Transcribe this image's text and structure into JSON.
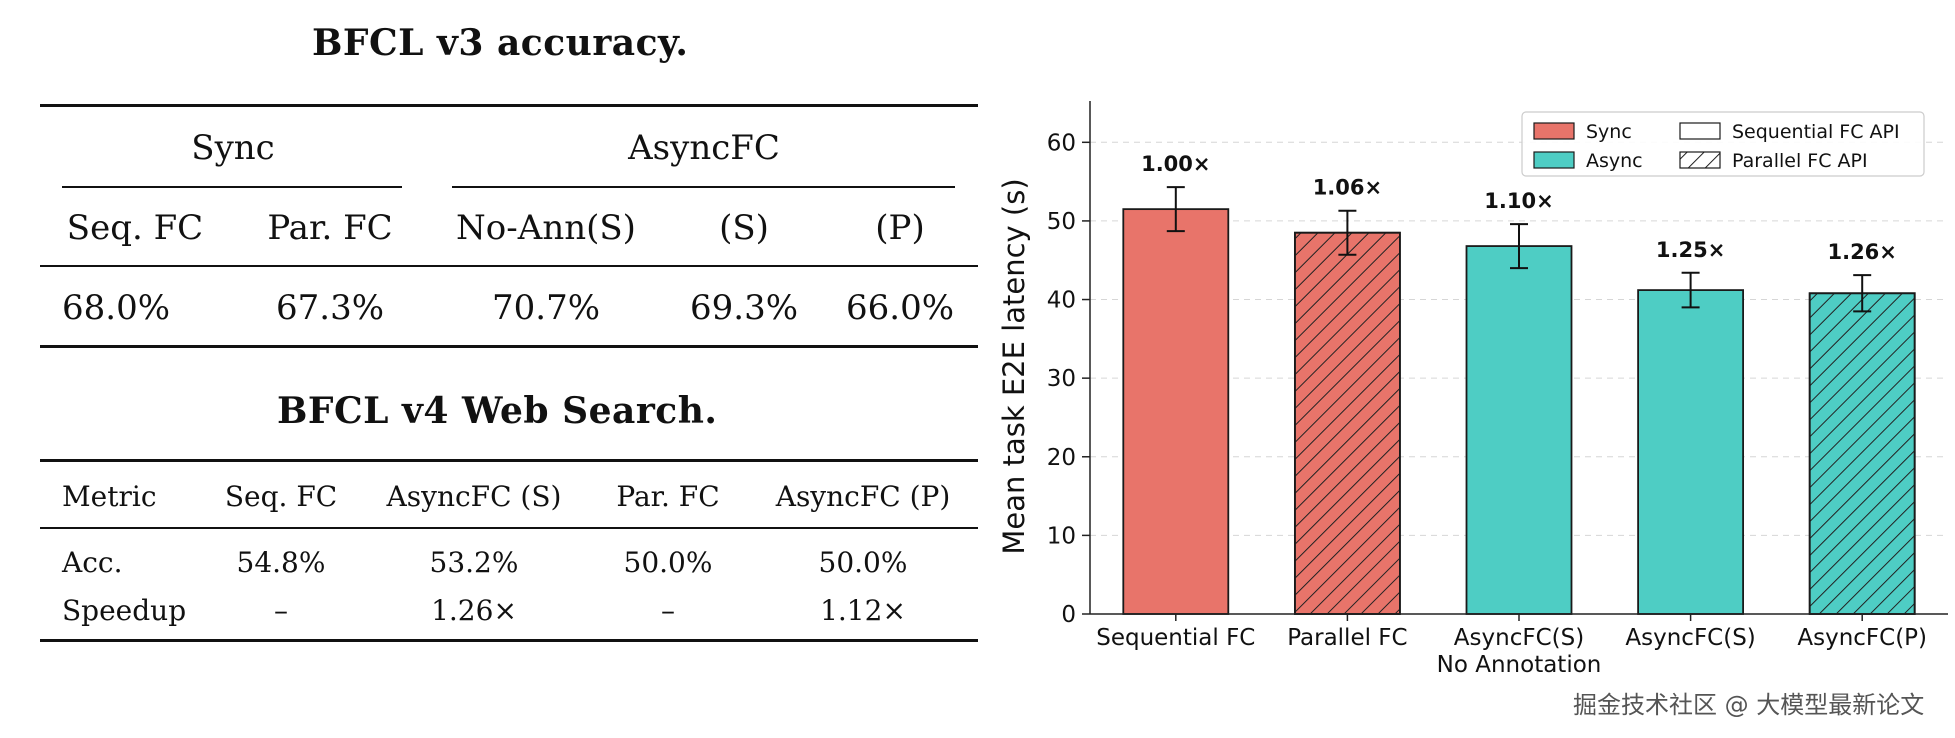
{
  "table1": {
    "title": "BFCL v3 accuracy.",
    "group_sync": "Sync",
    "group_async": "AsyncFC",
    "headers": [
      "Seq. FC",
      "Par. FC",
      "No-Ann(S)",
      "(S)",
      "(P)"
    ],
    "values": [
      "68.0%",
      "67.3%",
      "70.7%",
      "69.3%",
      "66.0%"
    ]
  },
  "table2": {
    "title": "BFCL v4 Web Search.",
    "headers": [
      "Metric",
      "Seq. FC",
      "AsyncFC (S)",
      "Par. FC",
      "AsyncFC (P)"
    ],
    "rows": [
      [
        "Acc.",
        "54.8%",
        "53.2%",
        "50.0%",
        "50.0%"
      ],
      [
        "Speedup",
        "–",
        "1.26×",
        "–",
        "1.12×"
      ]
    ]
  },
  "chart_data": {
    "type": "bar",
    "ylabel": "Mean task E2E latency (s)",
    "xlabel": "",
    "ylim": [
      0,
      65
    ],
    "yticks": [
      0,
      10,
      20,
      30,
      40,
      50,
      60
    ],
    "grid": true,
    "legend_position": "top-right",
    "legend": [
      {
        "label": "Sync",
        "kind": "color",
        "color": "#E8746A"
      },
      {
        "label": "Sequential FC API",
        "kind": "pattern",
        "hatch": false
      },
      {
        "label": "Async",
        "kind": "color",
        "color": "#4ECDC4"
      },
      {
        "label": "Parallel FC API",
        "kind": "pattern",
        "hatch": true
      }
    ],
    "bars": [
      {
        "category": "Sequential FC",
        "category2": "",
        "value": 51.5,
        "error": 2.8,
        "label": "1.00×",
        "color": "#E8746A",
        "hatch": false
      },
      {
        "category": "Parallel FC",
        "category2": "",
        "value": 48.5,
        "error": 2.8,
        "label": "1.06×",
        "color": "#E8746A",
        "hatch": true
      },
      {
        "category": "AsyncFC(S)",
        "category2": "No Annotation",
        "value": 46.8,
        "error": 2.8,
        "label": "1.10×",
        "color": "#4ECDC4",
        "hatch": false
      },
      {
        "category": "AsyncFC(S)",
        "category2": "",
        "value": 41.2,
        "error": 2.2,
        "label": "1.25×",
        "color": "#4ECDC4",
        "hatch": false
      },
      {
        "category": "AsyncFC(P)",
        "category2": "",
        "value": 40.8,
        "error": 2.3,
        "label": "1.26×",
        "color": "#4ECDC4",
        "hatch": true
      }
    ]
  },
  "watermark": "掘金技术社区 @ 大模型最新论文"
}
